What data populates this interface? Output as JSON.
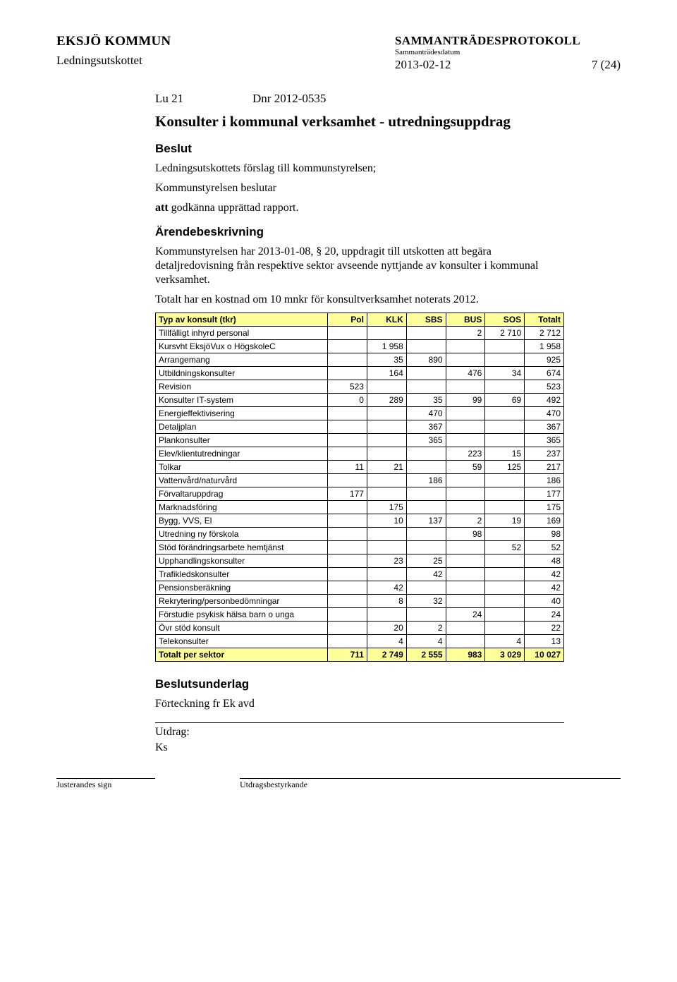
{
  "header": {
    "org": "EKSJÖ KOMMUN",
    "committee": "Ledningsutskottet",
    "protocol_title": "SAMMANTRÄDESPROTOKOLL",
    "protocol_sub": "Sammanträdesdatum",
    "date": "2013-02-12",
    "page": "7 (24)"
  },
  "lu": {
    "left": "Lu 21",
    "right": "Dnr 2012-0535"
  },
  "h1": "Konsulter i kommunal verksamhet - utredningsuppdrag",
  "decision_h": "Beslut",
  "decision_line1": "Ledningsutskottets förslag till kommunstyrelsen;",
  "decision_line2": "Kommunstyrelsen beslutar",
  "decision_line3_html": [
    "att",
    " godkänna upprättad rapport."
  ],
  "arende_h": "Ärendebeskrivning",
  "arende_p1": "Kommunstyrelsen har 2013-01-08, § 20, uppdragit till utskotten att begära detaljredovisning från respektive sektor avseende nyttjande av konsulter i kommunal verksamhet.",
  "arende_p2": "Totalt har en kostnad om 10 mnkr för konsultverksamhet noterats 2012.",
  "table": {
    "columns": [
      "Typ av konsult (tkr)",
      "Pol",
      "KLK",
      "SBS",
      "BUS",
      "SOS",
      "Totalt"
    ],
    "header_bg": "#ffff99",
    "rows": [
      {
        "label": "Tillfälligt inhyrd personal",
        "pol": "",
        "klk": "",
        "sbs": "",
        "bus": "2",
        "sos": "2 710",
        "tot": "2 712"
      },
      {
        "label": "Kursvht EksjöVux o HögskoleC",
        "pol": "",
        "klk": "1 958",
        "sbs": "",
        "bus": "",
        "sos": "",
        "tot": "1 958"
      },
      {
        "label": "Arrangemang",
        "pol": "",
        "klk": "35",
        "sbs": "890",
        "bus": "",
        "sos": "",
        "tot": "925"
      },
      {
        "label": "Utbildningskonsulter",
        "pol": "",
        "klk": "164",
        "sbs": "",
        "bus": "476",
        "sos": "34",
        "tot": "674"
      },
      {
        "label": "Revision",
        "pol": "523",
        "klk": "",
        "sbs": "",
        "bus": "",
        "sos": "",
        "tot": "523"
      },
      {
        "label": "Konsulter IT-system",
        "pol": "0",
        "klk": "289",
        "sbs": "35",
        "bus": "99",
        "sos": "69",
        "tot": "492"
      },
      {
        "label": "Energieffektivisering",
        "pol": "",
        "klk": "",
        "sbs": "470",
        "bus": "",
        "sos": "",
        "tot": "470"
      },
      {
        "label": "Detaljplan",
        "pol": "",
        "klk": "",
        "sbs": "367",
        "bus": "",
        "sos": "",
        "tot": "367"
      },
      {
        "label": "Plankonsulter",
        "pol": "",
        "klk": "",
        "sbs": "365",
        "bus": "",
        "sos": "",
        "tot": "365"
      },
      {
        "label": "Elev/klientutredningar",
        "pol": "",
        "klk": "",
        "sbs": "",
        "bus": "223",
        "sos": "15",
        "tot": "237"
      },
      {
        "label": "Tolkar",
        "pol": "11",
        "klk": "21",
        "sbs": "",
        "bus": "59",
        "sos": "125",
        "tot": "217"
      },
      {
        "label": "Vattenvård/naturvård",
        "pol": "",
        "klk": "",
        "sbs": "186",
        "bus": "",
        "sos": "",
        "tot": "186"
      },
      {
        "label": "Förvaltaruppdrag",
        "pol": "177",
        "klk": "",
        "sbs": "",
        "bus": "",
        "sos": "",
        "tot": "177"
      },
      {
        "label": "Marknadsföring",
        "pol": "",
        "klk": "175",
        "sbs": "",
        "bus": "",
        "sos": "",
        "tot": "175"
      },
      {
        "label": "Bygg, VVS, El",
        "pol": "",
        "klk": "10",
        "sbs": "137",
        "bus": "2",
        "sos": "19",
        "tot": "169"
      },
      {
        "label": "Utredning ny förskola",
        "pol": "",
        "klk": "",
        "sbs": "",
        "bus": "98",
        "sos": "",
        "tot": "98"
      },
      {
        "label": "Stöd förändringsarbete hemtjänst",
        "pol": "",
        "klk": "",
        "sbs": "",
        "bus": "",
        "sos": "52",
        "tot": "52"
      },
      {
        "label": "Upphandlingskonsulter",
        "pol": "",
        "klk": "23",
        "sbs": "25",
        "bus": "",
        "sos": "",
        "tot": "48"
      },
      {
        "label": "Trafikledskonsulter",
        "pol": "",
        "klk": "",
        "sbs": "42",
        "bus": "",
        "sos": "",
        "tot": "42"
      },
      {
        "label": "Pensionsberäkning",
        "pol": "",
        "klk": "42",
        "sbs": "",
        "bus": "",
        "sos": "",
        "tot": "42"
      },
      {
        "label": "Rekrytering/personbedömningar",
        "pol": "",
        "klk": "8",
        "sbs": "32",
        "bus": "",
        "sos": "",
        "tot": "40"
      },
      {
        "label": "Förstudie psykisk hälsa barn o unga",
        "pol": "",
        "klk": "",
        "sbs": "",
        "bus": "24",
        "sos": "",
        "tot": "24"
      },
      {
        "label": "Övr stöd konsult",
        "pol": "",
        "klk": "20",
        "sbs": "2",
        "bus": "",
        "sos": "",
        "tot": "22"
      },
      {
        "label": "Telekonsulter",
        "pol": "",
        "klk": "4",
        "sbs": "4",
        "bus": "",
        "sos": "4",
        "tot": "13"
      }
    ],
    "total": {
      "label": "Totalt per sektor",
      "pol": "711",
      "klk": "2 749",
      "sbs": "2 555",
      "bus": "983",
      "sos": "3 029",
      "tot": "10 027"
    }
  },
  "underlag_h": "Beslutsunderlag",
  "underlag_p": "Förteckning fr Ek avd",
  "extract_h": "Utdrag:",
  "extract_v": "Ks",
  "footer": {
    "left": "Justerandes sign",
    "right": "Utdragsbestyrkande"
  }
}
